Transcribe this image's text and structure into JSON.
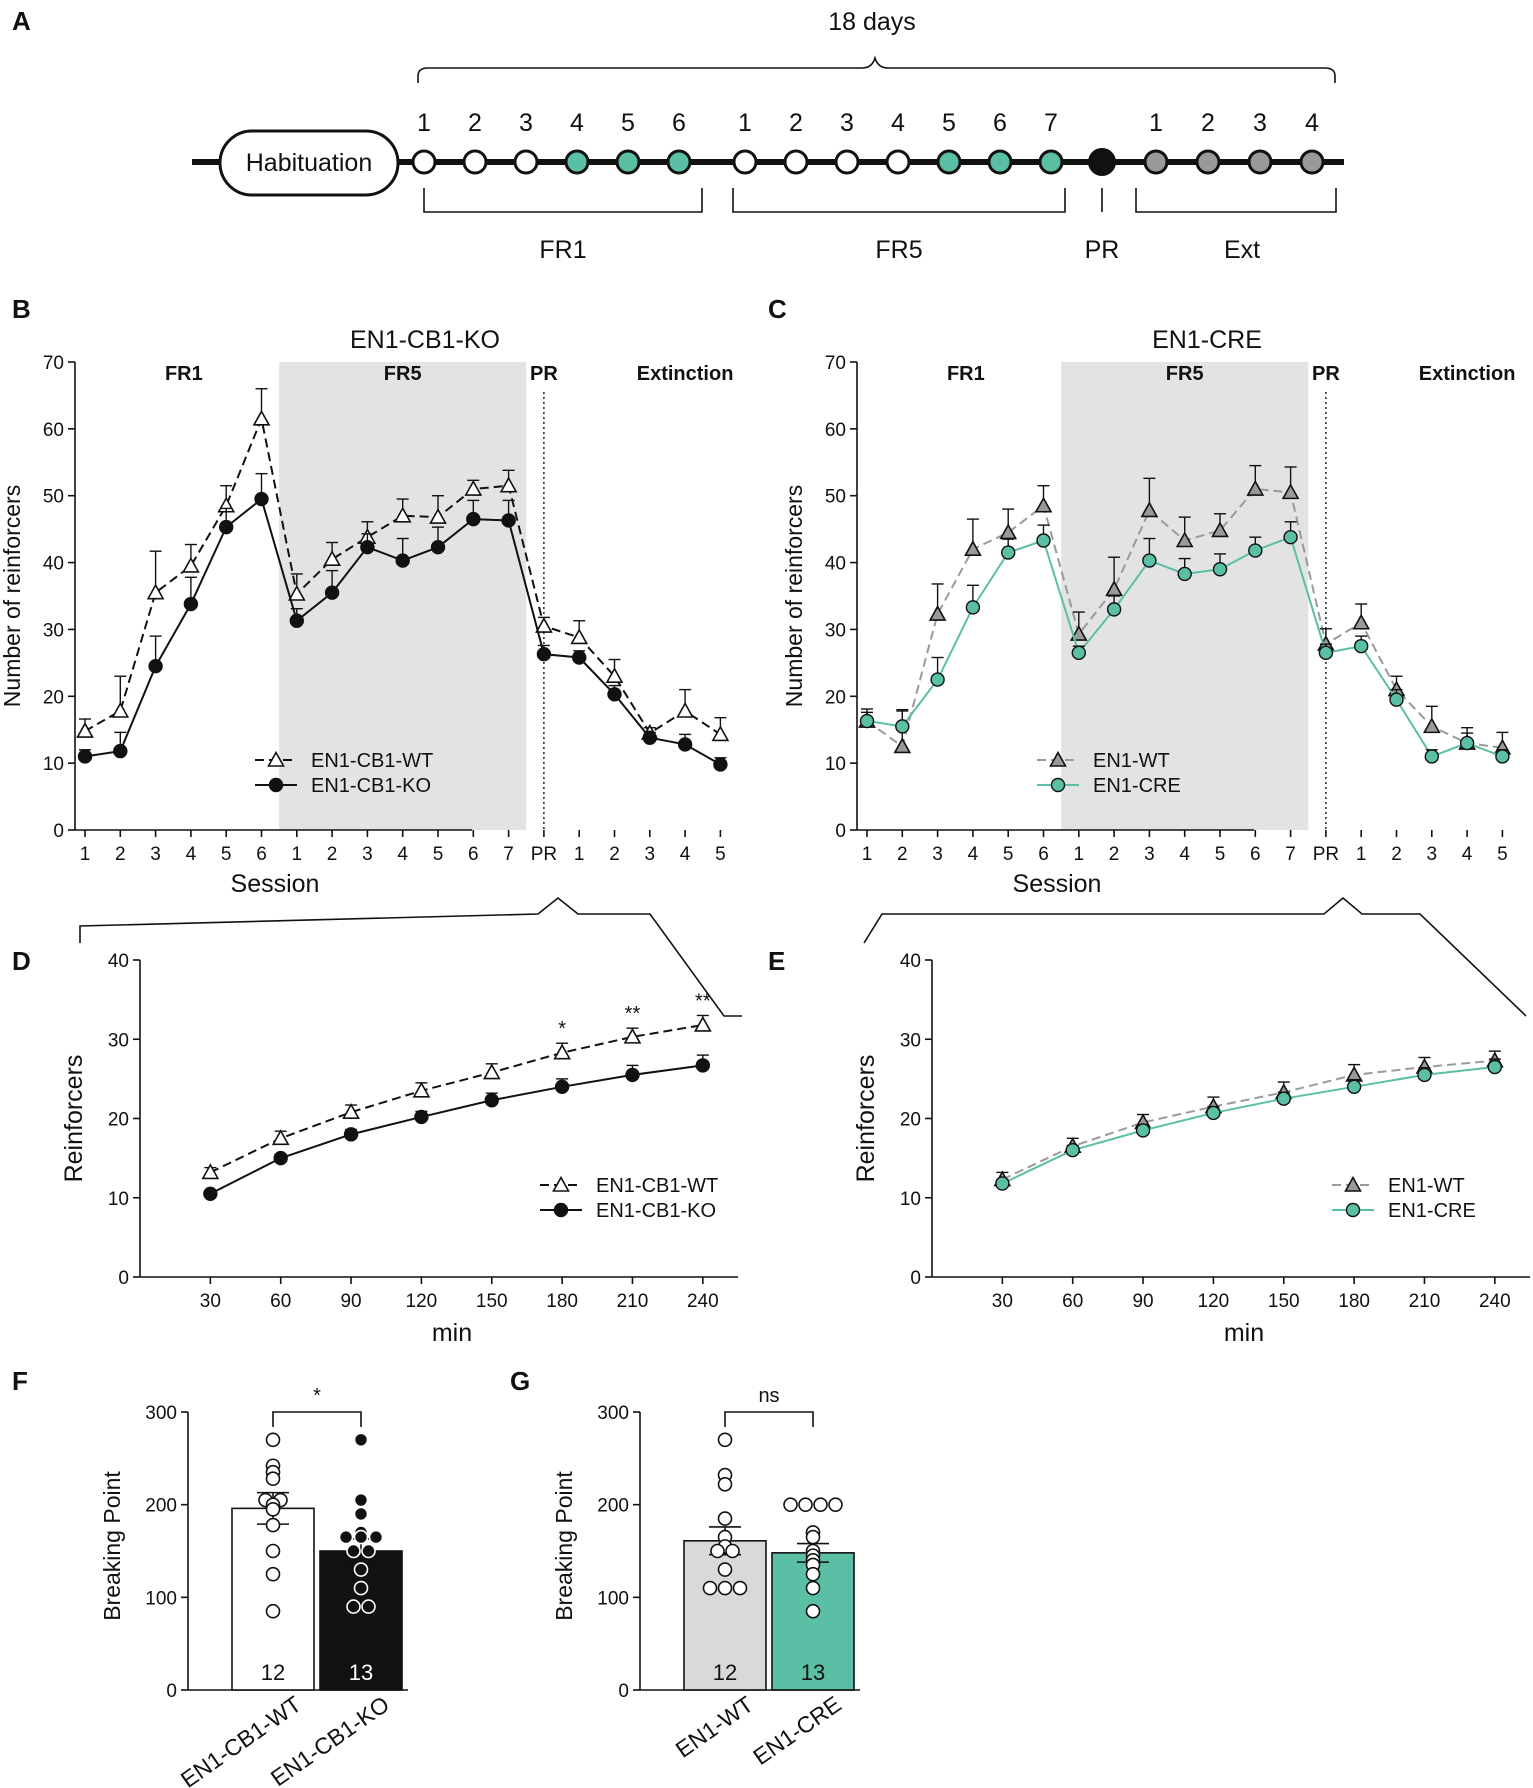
{
  "colors": {
    "teal": "#5bbfa6",
    "gray_marker": "#999999",
    "gray_line": "#9a9a9a",
    "shade": "#e3e3e3",
    "black": "#111111",
    "light_bar": "#d9d9d9"
  },
  "panel_labels": [
    "A",
    "B",
    "C",
    "D",
    "E",
    "F",
    "G"
  ],
  "panel_a": {
    "duration": "18 days",
    "habituation": "Habituation",
    "fr1_sessions": [
      "1",
      "2",
      "3",
      "4",
      "5",
      "6"
    ],
    "fr5_sessions": [
      "1",
      "2",
      "3",
      "4",
      "5",
      "6",
      "7"
    ],
    "ext_sessions": [
      "1",
      "2",
      "3",
      "4"
    ],
    "labels": {
      "fr1": "FR1",
      "fr5": "FR5",
      "pr": "PR",
      "ext": "Ext"
    }
  },
  "chart_data": [
    {
      "id": "B",
      "type": "line",
      "title": "EN1-CB1-KO",
      "xlabel": "Session",
      "ylabel": "Number of reinforcers",
      "ylim": [
        0,
        70
      ],
      "yticks": [
        0,
        10,
        20,
        30,
        40,
        50,
        60,
        70
      ],
      "categories": [
        "1",
        "2",
        "3",
        "4",
        "5",
        "6",
        "1",
        "2",
        "3",
        "4",
        "5",
        "6",
        "7",
        "PR",
        "1",
        "2",
        "3",
        "4",
        "5"
      ],
      "phases": [
        "FR1",
        "FR5",
        "PR",
        "Extinction"
      ],
      "legend_position": "bottom-left",
      "series": [
        {
          "name": "EN1-CB1-WT",
          "marker": "open-triangle",
          "line": "dashed",
          "values": [
            14.8,
            17.8,
            35.5,
            39.5,
            48.5,
            61.5,
            35.3,
            40.5,
            43.8,
            47.0,
            46.8,
            51.0,
            51.5,
            30.5,
            28.8,
            23.0,
            14.5,
            17.8,
            14.3
          ],
          "errors": [
            1.8,
            5.2,
            6.2,
            3.2,
            3.0,
            4.5,
            3.0,
            2.5,
            2.3,
            2.5,
            3.2,
            1.3,
            2.3,
            1.3,
            2.5,
            2.5,
            0.8,
            3.2,
            2.5
          ]
        },
        {
          "name": "EN1-CB1-KO",
          "marker": "filled-circle",
          "line": "solid",
          "values": [
            11.0,
            11.8,
            24.5,
            33.8,
            45.3,
            49.5,
            31.3,
            35.5,
            42.3,
            40.3,
            42.3,
            46.5,
            46.3,
            26.3,
            25.8,
            20.3,
            13.8,
            12.8,
            9.8
          ],
          "errors": [
            1.0,
            2.8,
            4.5,
            4.0,
            2.8,
            3.8,
            1.8,
            3.3,
            2.0,
            3.3,
            3.0,
            2.8,
            3.0,
            1.3,
            1.0,
            1.3,
            0.8,
            1.5,
            1.0
          ]
        }
      ]
    },
    {
      "id": "C",
      "type": "line",
      "title": "EN1-CRE",
      "xlabel": "Session",
      "ylabel": "Number of reinforcers",
      "ylim": [
        0,
        70
      ],
      "yticks": [
        0,
        10,
        20,
        30,
        40,
        50,
        60,
        70
      ],
      "categories": [
        "1",
        "2",
        "3",
        "4",
        "5",
        "6",
        "1",
        "2",
        "3",
        "4",
        "5",
        "6",
        "7",
        "PR",
        "1",
        "2",
        "3",
        "4",
        "5"
      ],
      "phases": [
        "FR1",
        "FR5",
        "PR",
        "Extinction"
      ],
      "legend_position": "bottom-left",
      "series": [
        {
          "name": "EN1-WT",
          "marker": "gray-triangle",
          "line": "dashed",
          "values": [
            16.3,
            12.5,
            32.3,
            42.0,
            44.5,
            48.5,
            29.3,
            36.0,
            47.8,
            43.3,
            44.8,
            51.0,
            50.5,
            27.8,
            31.0,
            21.0,
            15.5,
            13.0,
            12.3
          ],
          "errors": [
            1.8,
            5.5,
            4.5,
            4.5,
            3.5,
            3.0,
            3.3,
            4.8,
            4.8,
            3.5,
            2.5,
            3.5,
            3.8,
            2.3,
            2.8,
            2.0,
            3.0,
            2.3,
            2.3
          ]
        },
        {
          "name": "EN1-CRE",
          "marker": "teal-circle",
          "line": "solid",
          "values": [
            16.3,
            15.5,
            22.5,
            33.3,
            41.5,
            43.3,
            26.5,
            33.0,
            40.3,
            38.3,
            39.0,
            41.8,
            43.8,
            26.5,
            27.5,
            19.5,
            11.0,
            13.0,
            11.0
          ],
          "errors": [
            1.3,
            2.3,
            3.3,
            3.3,
            2.0,
            2.3,
            1.0,
            2.0,
            3.3,
            2.3,
            2.3,
            2.0,
            2.3,
            1.3,
            1.5,
            1.5,
            1.0,
            1.5,
            1.0
          ]
        }
      ]
    },
    {
      "id": "D",
      "type": "line",
      "xlabel": "min",
      "ylabel": "Reinforcers",
      "ylim": [
        0,
        40
      ],
      "xlim": [
        0,
        255
      ],
      "yticks": [
        0,
        10,
        20,
        30,
        40
      ],
      "x": [
        30,
        60,
        90,
        120,
        150,
        180,
        210,
        240
      ],
      "annotations": [
        "",
        "",
        "",
        "",
        "",
        "*",
        "**",
        "**"
      ],
      "legend_position": "bottom-right",
      "series": [
        {
          "name": "EN1-CB1-WT",
          "marker": "open-triangle",
          "line": "dashed",
          "values": [
            13.2,
            17.5,
            20.8,
            23.5,
            25.8,
            28.3,
            30.3,
            31.8
          ],
          "errors": [
            0.6,
            0.9,
            0.9,
            1.0,
            1.1,
            1.2,
            1.1,
            1.2
          ]
        },
        {
          "name": "EN1-CB1-KO",
          "marker": "filled-circle",
          "line": "solid",
          "values": [
            10.5,
            15.0,
            18.0,
            20.2,
            22.3,
            24.0,
            25.5,
            26.7
          ],
          "errors": [
            0.4,
            0.5,
            0.6,
            0.7,
            0.9,
            1.0,
            1.2,
            1.3
          ]
        }
      ]
    },
    {
      "id": "E",
      "type": "line",
      "xlabel": "min",
      "ylabel": "Reinforcers",
      "ylim": [
        0,
        40
      ],
      "xlim": [
        0,
        255
      ],
      "yticks": [
        0,
        10,
        20,
        30,
        40
      ],
      "x": [
        30,
        60,
        90,
        120,
        150,
        180,
        210,
        240
      ],
      "legend_position": "bottom-right",
      "series": [
        {
          "name": "EN1-WT",
          "marker": "gray-triangle",
          "line": "dashed",
          "values": [
            12.3,
            16.5,
            19.5,
            21.5,
            23.3,
            25.5,
            26.5,
            27.3
          ],
          "errors": [
            0.9,
            1.0,
            1.0,
            1.2,
            1.3,
            1.3,
            1.2,
            1.2
          ]
        },
        {
          "name": "EN1-CRE",
          "marker": "teal-circle",
          "line": "solid",
          "values": [
            11.8,
            16.0,
            18.5,
            20.7,
            22.5,
            24.0,
            25.5,
            26.5
          ],
          "errors": [
            0.5,
            0.6,
            0.7,
            0.8,
            0.8,
            0.9,
            0.9,
            1.0
          ]
        }
      ]
    },
    {
      "id": "F",
      "type": "bar",
      "ylabel": "Breaking Point",
      "ylim": [
        0,
        300
      ],
      "yticks": [
        0,
        100,
        200,
        300
      ],
      "categories": [
        "EN1-CB1-WT",
        "EN1-CB1-KO"
      ],
      "values": [
        196,
        150
      ],
      "errors": [
        17,
        13
      ],
      "n": [
        "12",
        "13"
      ],
      "bar_colors": [
        "#ffffff",
        "#111111"
      ],
      "significance": "*",
      "points": [
        [
          270,
          242,
          235,
          228,
          205,
          205,
          200,
          195,
          178,
          150,
          125,
          85
        ],
        [
          270,
          205,
          190,
          170,
          165,
          165,
          165,
          150,
          150,
          130,
          110,
          90,
          90
        ]
      ]
    },
    {
      "id": "G",
      "type": "bar",
      "ylabel": "Breaking Point",
      "ylim": [
        0,
        300
      ],
      "yticks": [
        0,
        100,
        200,
        300
      ],
      "categories": [
        "EN1-WT",
        "EN1-CRE"
      ],
      "values": [
        161,
        148
      ],
      "errors": [
        15,
        10
      ],
      "n": [
        "12",
        "13"
      ],
      "bar_colors": [
        "#d9d9d9",
        "#5bbfa6"
      ],
      "significance": "ns",
      "points": [
        [
          270,
          232,
          222,
          185,
          165,
          155,
          150,
          150,
          130,
          110,
          110,
          110
        ],
        [
          200,
          200,
          200,
          200,
          170,
          165,
          150,
          145,
          140,
          135,
          125,
          110,
          85
        ]
      ]
    }
  ]
}
